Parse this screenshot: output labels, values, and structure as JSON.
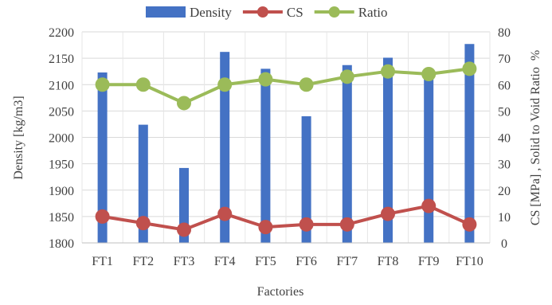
{
  "chart_data": {
    "type": "bar",
    "categories": [
      "FT1",
      "FT2",
      "FT3",
      "FT4",
      "FT5",
      "FT6",
      "FT7",
      "FT8",
      "FT9",
      "FT10"
    ],
    "series": [
      {
        "name": "Density",
        "kind": "bar",
        "axis": "left",
        "color": "#4472C4",
        "values": [
          2123,
          2024,
          1942,
          2162,
          2130,
          2040,
          2137,
          2151,
          2121,
          2177
        ]
      },
      {
        "name": "CS",
        "kind": "line",
        "axis": "right",
        "color": "#C0504D",
        "values": [
          10,
          7.5,
          5,
          11,
          6,
          7,
          7,
          11,
          14,
          7
        ]
      },
      {
        "name": "Ratio",
        "kind": "line",
        "axis": "right",
        "color": "#9BBB59",
        "values": [
          60,
          60,
          53,
          60,
          62,
          60,
          63,
          65,
          64,
          66
        ]
      }
    ],
    "xlabel": "Factories",
    "ylabel": "Density [kg/m3]",
    "y2label": "CS [MPa] , Solid to Void Ratio  %",
    "ylim": [
      1800,
      2200
    ],
    "yticks": [
      1800,
      1850,
      1900,
      1950,
      2000,
      2050,
      2100,
      2150,
      2200
    ],
    "y2lim": [
      0,
      80
    ],
    "y2ticks": [
      0,
      10,
      20,
      30,
      40,
      50,
      60,
      70,
      80
    ],
    "grid": true,
    "legend": "top-center"
  }
}
